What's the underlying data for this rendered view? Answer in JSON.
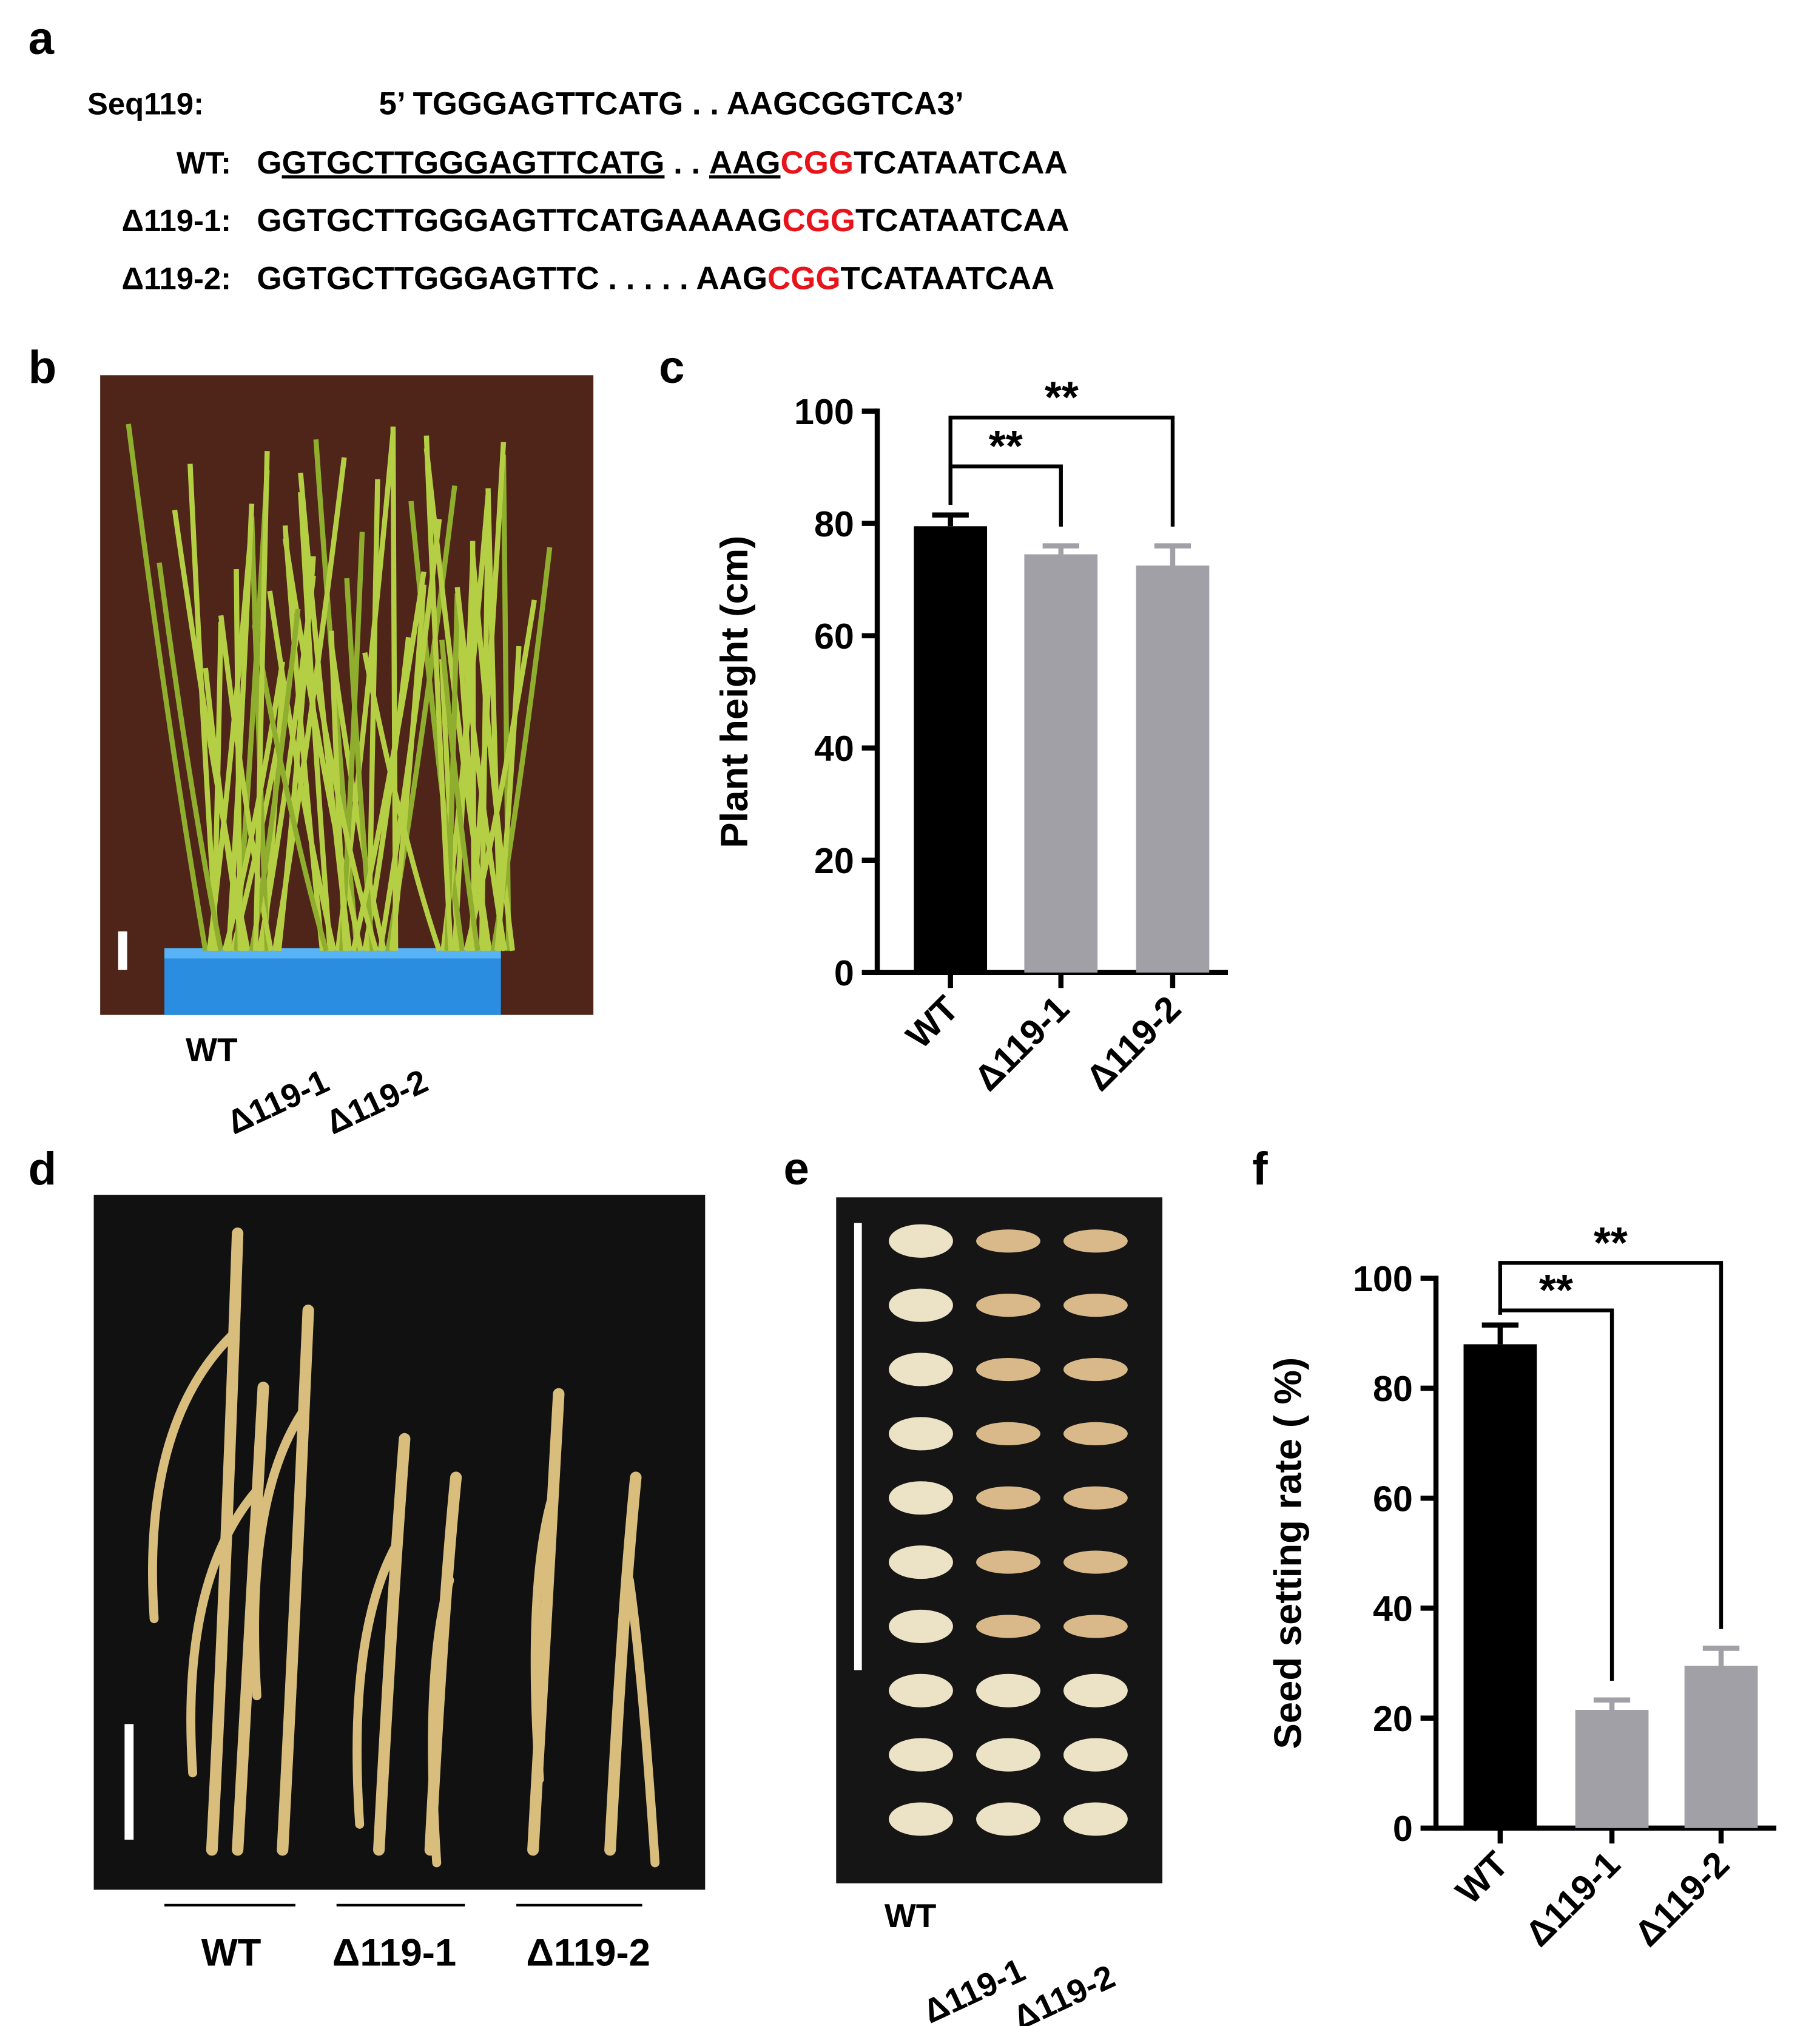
{
  "panel_letters": [
    "a",
    "b",
    "c",
    "d",
    "e",
    "f"
  ],
  "sequences": {
    "reference": {
      "label": "Seq119:",
      "text": "5’ TGGGAGTTCATG . . AAGCGGTCA3’"
    },
    "rows": [
      {
        "label": "WT:",
        "segments": [
          {
            "text": "G"
          },
          {
            "text": "GTGCTTGGGAGTTCATG",
            "underline": true
          },
          {
            "text": " . . "
          },
          {
            "text": "AAG",
            "underline": true
          },
          {
            "text": "CGG",
            "color": "#e8141b"
          },
          {
            "text": "TCATAATCAA"
          }
        ]
      },
      {
        "label": "Δ119-1:",
        "segments": [
          {
            "text": "GGTGCTTGGGAGTTCATGAAAAG"
          },
          {
            "text": "CGG",
            "color": "#e8141b"
          },
          {
            "text": "TCATAATCAA"
          }
        ]
      },
      {
        "label": "Δ119-2:",
        "segments": [
          {
            "text": "GGTGCTTGGGAGTTC . . . . . AAG"
          },
          {
            "text": "CGG",
            "color": "#e8141b"
          },
          {
            "text": "TCATAATCAA"
          }
        ]
      }
    ]
  },
  "photo_b_labels": [
    "WT",
    "Δ119-1",
    "Δ119-2"
  ],
  "photo_d_labels": [
    "WT",
    "Δ119-1",
    "Δ119-2"
  ],
  "photo_e_labels": [
    "WT",
    "Δ119-1",
    "Δ119-2"
  ],
  "chart_data": [
    {
      "type": "bar",
      "ylabel": "Plant height (cm)",
      "categories": [
        "WT",
        "Δ119-1",
        "Δ119-2"
      ],
      "values": [
        79.5,
        74.5,
        72.5
      ],
      "errors": [
        2,
        1.5,
        3.5
      ],
      "colors": [
        "#000000",
        "#a0a0a6",
        "#a0a0a6"
      ],
      "ylim": [
        0,
        100
      ],
      "yticks": [
        0,
        20,
        40,
        60,
        80,
        100
      ],
      "comparisons": [
        {
          "from": "WT",
          "to": "Δ119-1",
          "label": "**"
        },
        {
          "from": "WT",
          "to": "Δ119-2",
          "label": "**"
        }
      ]
    },
    {
      "type": "bar",
      "ylabel": "Seed setting rate ( %)",
      "categories": [
        "WT",
        "Δ119-1",
        "Δ119-2"
      ],
      "values": [
        88,
        21.5,
        29.5
      ],
      "errors": [
        3.5,
        1.8,
        3.2
      ],
      "colors": [
        "#000000",
        "#a0a0a6",
        "#a0a0a6"
      ],
      "ylim": [
        0,
        100
      ],
      "yticks": [
        0,
        20,
        40,
        60,
        80,
        100
      ],
      "comparisons": [
        {
          "from": "WT",
          "to": "Δ119-1",
          "label": "**"
        },
        {
          "from": "WT",
          "to": "Δ119-2",
          "label": "**"
        }
      ]
    }
  ]
}
